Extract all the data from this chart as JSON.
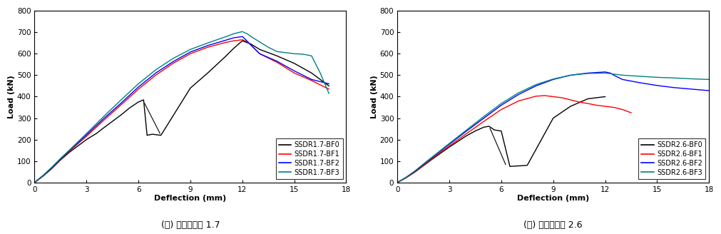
{
  "chart1": {
    "title": "(가) 전단경간비 1.7",
    "xlabel": "Deflection (mm)",
    "ylabel": "Load (kN)",
    "xlim": [
      0,
      18
    ],
    "ylim": [
      0,
      800
    ],
    "xticks": [
      0,
      3,
      6,
      9,
      12,
      15,
      18
    ],
    "yticks": [
      0,
      100,
      200,
      300,
      400,
      500,
      600,
      700,
      800
    ],
    "series": [
      {
        "label": "SSDR1.7-BF0",
        "color": "#000000",
        "lw": 1.0,
        "x": [
          0,
          0.5,
          1,
          1.5,
          2,
          2.5,
          3,
          3.3,
          3.6,
          4,
          4.5,
          5,
          5.5,
          6,
          6.3,
          6.5,
          6.8,
          7.3,
          9,
          10,
          11,
          11.5,
          12,
          12.5,
          13,
          14,
          15,
          16,
          17
        ],
        "y": [
          0,
          30,
          65,
          105,
          140,
          170,
          200,
          215,
          230,
          255,
          285,
          315,
          348,
          375,
          385,
          220,
          225,
          220,
          440,
          510,
          585,
          625,
          660,
          645,
          620,
          590,
          555,
          510,
          450
        ]
      },
      {
        "label": "SSDR1.7-BF1",
        "color": "#ff0000",
        "lw": 1.0,
        "x": [
          0,
          0.5,
          1,
          1.5,
          2,
          3,
          4,
          5,
          6,
          7,
          8,
          9,
          10,
          11,
          11.5,
          12,
          12.3,
          12.5,
          13,
          14,
          15,
          16,
          17
        ],
        "y": [
          0,
          32,
          68,
          108,
          145,
          215,
          290,
          362,
          435,
          500,
          555,
          600,
          630,
          652,
          660,
          665,
          655,
          640,
          600,
          560,
          510,
          475,
          435
        ]
      },
      {
        "label": "SSDR1.7-BF2",
        "color": "#0000ff",
        "lw": 1.0,
        "x": [
          0,
          0.5,
          1,
          1.5,
          2,
          3,
          4,
          5,
          6,
          7,
          8,
          9,
          10,
          11,
          11.5,
          12,
          12.2,
          12.5,
          13,
          14,
          15,
          16,
          17
        ],
        "y": [
          0,
          33,
          70,
          110,
          148,
          222,
          298,
          370,
          445,
          510,
          563,
          608,
          638,
          662,
          674,
          680,
          665,
          640,
          600,
          565,
          520,
          480,
          460
        ]
      },
      {
        "label": "SSDR1.7-BF3",
        "color": "#008080",
        "lw": 1.0,
        "x": [
          0,
          0.5,
          1,
          1.5,
          2,
          3,
          4,
          5,
          6,
          7,
          8,
          9,
          10,
          11,
          11.5,
          12,
          12.3,
          12.5,
          13,
          13.5,
          14,
          15,
          15.5,
          16,
          16.5,
          17
        ],
        "y": [
          0,
          33,
          71,
          112,
          150,
          228,
          308,
          385,
          460,
          525,
          578,
          620,
          650,
          678,
          693,
          703,
          692,
          680,
          655,
          630,
          610,
          600,
          598,
          590,
          510,
          415
        ]
      }
    ],
    "ann_x1": 6.3,
    "ann_y1": 378,
    "ann_x2": 7.3,
    "ann_y2": 220
  },
  "chart2": {
    "title": "(나) 전단경간비 2.6",
    "xlabel": "Deflection (mm)",
    "ylabel": "Load (kN)",
    "xlim": [
      0,
      18
    ],
    "ylim": [
      0,
      800
    ],
    "xticks": [
      0,
      3,
      6,
      9,
      12,
      15,
      18
    ],
    "yticks": [
      0,
      100,
      200,
      300,
      400,
      500,
      600,
      700,
      800
    ],
    "series": [
      {
        "label": "SSDR2.6-BF0",
        "color": "#000000",
        "lw": 1.0,
        "x": [
          0,
          0.5,
          1,
          1.5,
          2,
          3,
          4,
          4.5,
          5,
          5.3,
          5.6,
          6.0,
          6.5,
          7.5,
          9,
          10,
          11,
          12
        ],
        "y": [
          0,
          22,
          48,
          78,
          108,
          165,
          218,
          240,
          258,
          262,
          245,
          240,
          75,
          80,
          300,
          355,
          390,
          400
        ]
      },
      {
        "label": "SSDR2.6-BF1",
        "color": "#ff0000",
        "lw": 1.0,
        "x": [
          0,
          0.5,
          1,
          1.5,
          2,
          3,
          4,
          5,
          6,
          7,
          8,
          8.5,
          9,
          9.5,
          10,
          10.5,
          11,
          11.5,
          12,
          12.5,
          13,
          13.5
        ],
        "y": [
          0,
          22,
          50,
          80,
          112,
          170,
          228,
          285,
          340,
          380,
          402,
          405,
          400,
          395,
          385,
          375,
          368,
          360,
          355,
          350,
          340,
          325
        ]
      },
      {
        "label": "SSDR2.6-BF2",
        "color": "#0000ff",
        "lw": 1.0,
        "x": [
          0,
          0.5,
          1,
          1.5,
          2,
          3,
          4,
          5,
          6,
          7,
          8,
          9,
          10,
          11,
          12,
          12.3,
          12.5,
          13,
          14,
          15,
          16,
          17,
          18
        ],
        "y": [
          0,
          24,
          52,
          84,
          116,
          178,
          240,
          300,
          360,
          410,
          450,
          480,
          500,
          510,
          515,
          510,
          500,
          480,
          465,
          452,
          442,
          435,
          428
        ]
      },
      {
        "label": "SSDR2.6-BF3",
        "color": "#008080",
        "lw": 1.0,
        "x": [
          0,
          0.5,
          1,
          1.5,
          2,
          3,
          4,
          5,
          6,
          7,
          8,
          9,
          10,
          11,
          12,
          12.5,
          13,
          14,
          15,
          16,
          17,
          18
        ],
        "y": [
          0,
          24,
          53,
          86,
          118,
          182,
          245,
          308,
          368,
          418,
          456,
          482,
          500,
          508,
          510,
          505,
          500,
          495,
          490,
          487,
          483,
          480
        ]
      }
    ],
    "ann_x1": 5.3,
    "ann_y1": 262,
    "ann_x2": 6.3,
    "ann_y2": 75
  }
}
